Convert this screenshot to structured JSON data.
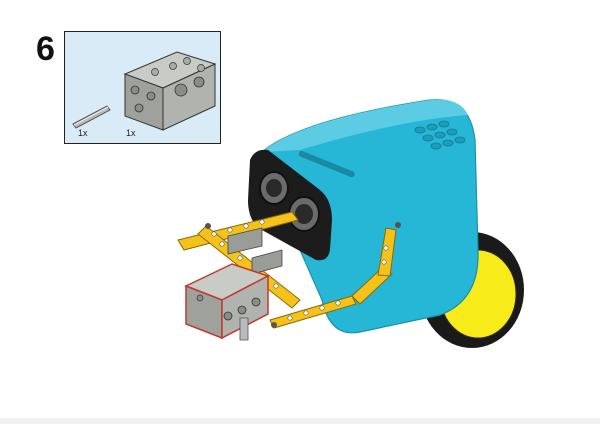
{
  "step": {
    "number": "6"
  },
  "parts_callout": {
    "items": [
      {
        "part": "axle-pin",
        "quantity": "1x"
      },
      {
        "part": "motor-block",
        "quantity": "1x"
      }
    ]
  },
  "colors": {
    "robot_body": "#26b6d6",
    "frame": "#f4c21b",
    "wheel": "#f7ec1a",
    "motor": "#8f928b",
    "callout_bg": "#d8ebf7"
  }
}
